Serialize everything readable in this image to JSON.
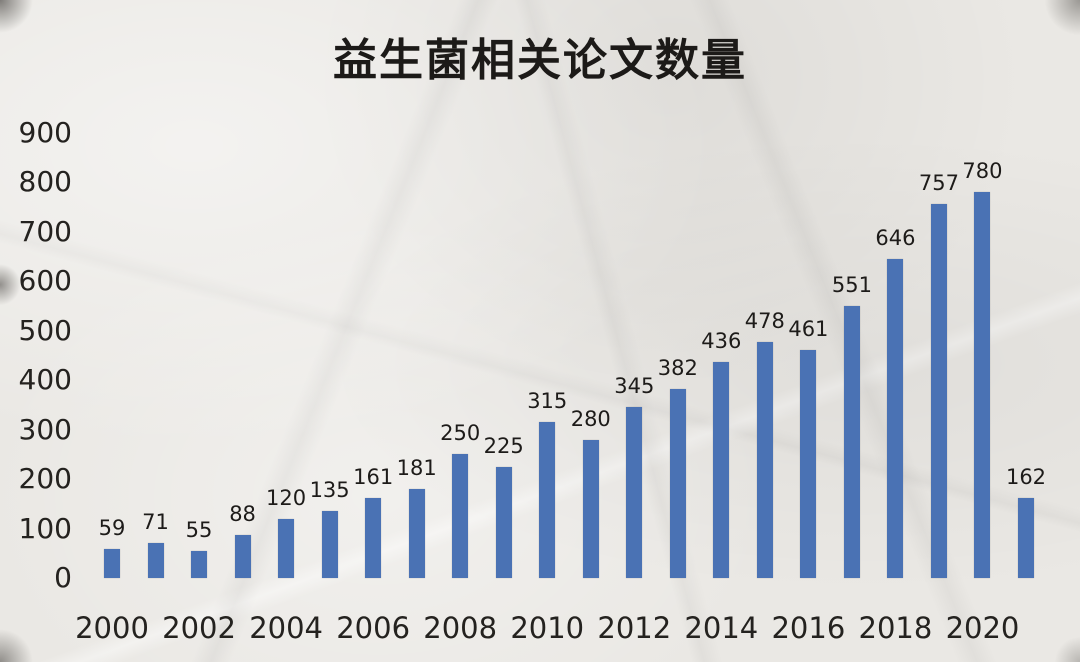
{
  "title": "益生菌相关论文数量",
  "colors": {
    "bar": "#4a72b4",
    "text": "#24221f",
    "background": "#eae8e4"
  },
  "chart_data": {
    "type": "bar",
    "title": "益生菌相关论文数量",
    "categories": [
      "2000",
      "2001",
      "2002",
      "2003",
      "2004",
      "2005",
      "2006",
      "2007",
      "2008",
      "2009",
      "2010",
      "2011",
      "2012",
      "2013",
      "2014",
      "2015",
      "2016",
      "2017",
      "2018",
      "2019",
      "2020",
      "2021"
    ],
    "values": [
      59,
      71,
      55,
      88,
      120,
      135,
      161,
      181,
      250,
      225,
      315,
      280,
      345,
      382,
      436,
      478,
      461,
      551,
      646,
      757,
      780,
      162
    ],
    "xlabel": "",
    "ylabel": "",
    "ylim": [
      0,
      900
    ],
    "y_ticks": [
      0,
      100,
      200,
      300,
      400,
      500,
      600,
      700,
      800,
      900
    ],
    "x_tick_labels": [
      "2000",
      "2002",
      "2004",
      "2006",
      "2008",
      "2010",
      "2012",
      "2014",
      "2016",
      "2018",
      "2020"
    ],
    "grid": false,
    "legend": "none",
    "value_labels": true
  }
}
